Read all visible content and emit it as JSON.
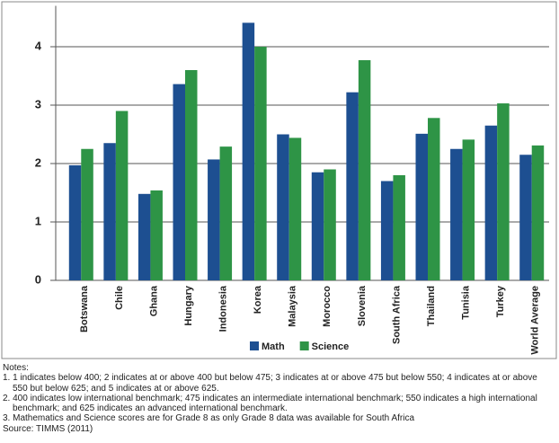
{
  "chart_data": {
    "type": "bar",
    "categories": [
      "Botswana",
      "Chile",
      "Ghana",
      "Hungary",
      "Indonesia",
      "Korea",
      "Malaysia",
      "Morocco",
      "Slovenia",
      "South Africa",
      "Thailand",
      "Tunisia",
      "Turkey",
      "World Average"
    ],
    "series": [
      {
        "name": "Math",
        "color": "#1d4f91",
        "values": [
          1.97,
          2.35,
          1.48,
          3.36,
          2.07,
          4.41,
          2.5,
          1.85,
          3.22,
          1.7,
          2.51,
          2.25,
          2.65,
          2.15
        ]
      },
      {
        "name": "Science",
        "color": "#2e9446",
        "values": [
          2.25,
          2.9,
          1.54,
          3.6,
          2.29,
          4.0,
          2.44,
          1.9,
          3.77,
          1.8,
          2.78,
          2.41,
          3.03,
          2.31
        ]
      }
    ],
    "ylim": [
      0,
      4.7
    ],
    "yticks": [
      0,
      1,
      2,
      3,
      4
    ],
    "grid": true
  },
  "notes": {
    "title": "Notes:",
    "items": [
      "1. 1 indicates below 400; 2 indicates at or above 400 but below 475; 3 indicates at or above 475 but below 550; 4 indicates at or above 550 but below 625; and 5 indicates at or above 625.",
      "2. 400 indicates low international benchmark; 475 indicates an intermediate international benchmark; 550 indicates a high international benchmark; and 625 indicates an advanced international benchmark.",
      "3. Mathematics and Science scores are for Grade 8 as only Grade 8 data was available for South Africa"
    ],
    "source": "Source: TIMMS (2011)"
  }
}
